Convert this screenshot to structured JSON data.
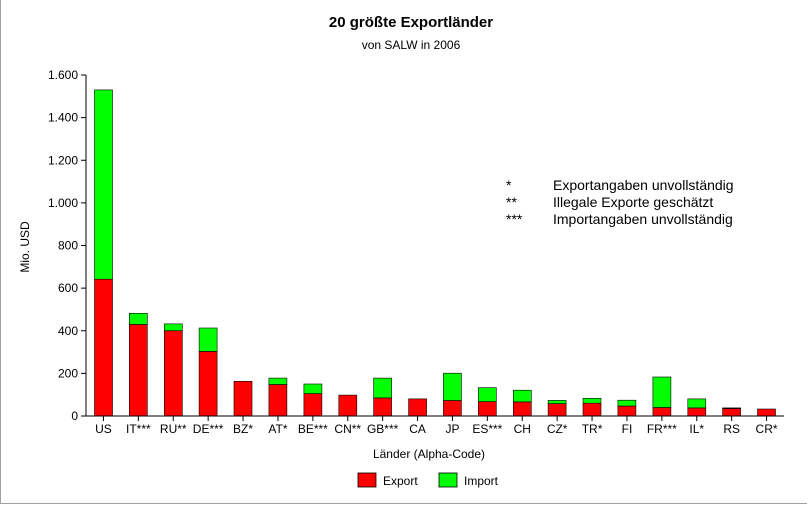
{
  "chart_data": {
    "type": "bar",
    "stacked": true,
    "title": "20 größte Exportländer",
    "subtitle": "von SALW in 2006",
    "xlabel": "Länder (Alpha-Code)",
    "ylabel": "Mio. USD",
    "ylim": [
      0,
      1600
    ],
    "yticks": [
      0,
      200,
      400,
      600,
      800,
      1000,
      1200,
      1400,
      1600
    ],
    "ytick_labels": [
      "0",
      "200",
      "400",
      "600",
      "800",
      "1.000",
      "1.200",
      "1.400",
      "1.600"
    ],
    "grid": false,
    "legend_position": "bottom",
    "categories": [
      "US",
      "IT***",
      "RU**",
      "DE***",
      "BZ*",
      "AT*",
      "BE***",
      "CN**",
      "GB***",
      "CA",
      "JP",
      "ES***",
      "CH",
      "CZ*",
      "TR*",
      "FI",
      "FR***",
      "IL*",
      "RS",
      "CR*"
    ],
    "series": [
      {
        "name": "Export",
        "color": "#ff0000",
        "values": [
          642,
          430,
          400,
          303,
          163,
          148,
          105,
          98,
          85,
          80,
          73,
          68,
          66,
          58,
          60,
          47,
          40,
          38,
          35,
          33
        ]
      },
      {
        "name": "Import",
        "color": "#00ff00",
        "values": [
          888,
          52,
          32,
          110,
          0,
          30,
          45,
          0,
          93,
          0,
          128,
          65,
          55,
          15,
          23,
          27,
          143,
          42,
          3,
          0
        ]
      }
    ],
    "annotations": [
      {
        "symbol": "*",
        "text": "Exportangaben unvollständig"
      },
      {
        "symbol": "**",
        "text": "Illegale Exporte geschätzt"
      },
      {
        "symbol": "***",
        "text": "Importangaben unvollständig"
      }
    ]
  }
}
